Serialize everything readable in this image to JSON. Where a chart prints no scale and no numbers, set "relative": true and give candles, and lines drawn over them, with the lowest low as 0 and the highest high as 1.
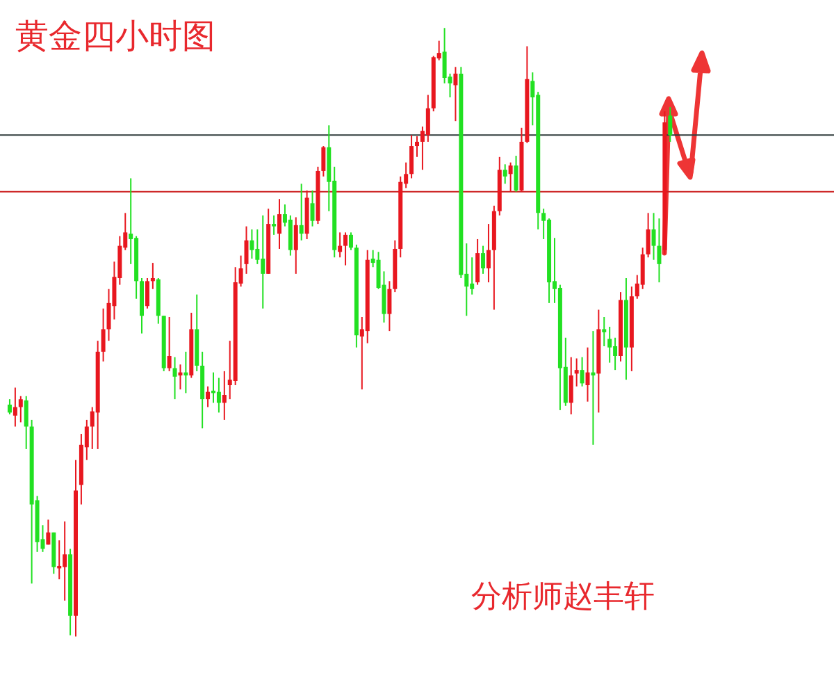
{
  "chart_data": {
    "type": "candlestick",
    "title": "黄金四小时图",
    "relative": true,
    "categories": [
      null,
      null,
      null,
      null,
      null,
      null,
      null,
      null,
      null,
      null,
      null,
      null,
      null,
      null,
      null,
      null,
      null,
      null,
      null,
      null,
      null,
      null,
      null,
      null,
      null,
      null,
      null,
      null,
      null,
      null,
      null,
      null,
      null,
      null,
      null,
      null,
      null,
      null,
      null,
      null,
      null,
      null,
      null,
      null,
      null,
      null,
      null,
      null,
      null,
      null,
      null,
      null,
      null,
      null,
      null,
      null,
      null,
      null,
      null,
      null,
      null,
      null,
      null,
      null,
      null,
      null,
      null,
      null,
      null,
      null,
      null,
      null,
      null,
      null,
      null,
      null,
      null,
      null,
      null,
      null,
      null,
      null,
      null,
      null,
      null,
      null,
      null,
      null,
      null,
      null,
      null,
      null,
      null,
      null,
      null,
      null,
      null,
      null,
      null,
      null,
      null,
      null,
      null,
      null,
      null,
      null,
      null,
      null,
      null,
      null,
      null,
      null,
      null,
      null,
      null,
      null,
      null,
      null,
      null,
      null,
      null
    ],
    "ohlc": [
      [
        0.381,
        0.39,
        0.365,
        0.368
      ],
      [
        0.363,
        0.409,
        0.345,
        0.377
      ],
      [
        0.377,
        0.395,
        0.352,
        0.39
      ],
      [
        0.388,
        0.395,
        0.308,
        0.345
      ],
      [
        0.345,
        0.356,
        0.087,
        0.217
      ],
      [
        0.224,
        0.231,
        0.139,
        0.155
      ],
      [
        0.16,
        0.183,
        0.139,
        0.144
      ],
      [
        0.151,
        0.192,
        0.151,
        0.171
      ],
      [
        0.171,
        0.171,
        0.103,
        0.114
      ],
      [
        0.112,
        0.158,
        0.094,
        0.116
      ],
      [
        0.114,
        0.189,
        0.059,
        0.135
      ],
      [
        0.135,
        0.144,
        0.002,
        0.034
      ],
      [
        0.034,
        0.29,
        0,
        0.24
      ],
      [
        0.249,
        0.333,
        0.217,
        0.315
      ],
      [
        0.311,
        0.356,
        0.29,
        0.345
      ],
      [
        0.345,
        0.377,
        0.308,
        0.37
      ],
      [
        0.368,
        0.486,
        0.308,
        0.468
      ],
      [
        0.468,
        0.539,
        0.452,
        0.505
      ],
      [
        0.505,
        0.571,
        0.486,
        0.548
      ],
      [
        0.543,
        0.616,
        0.521,
        0.591
      ],
      [
        0.589,
        0.658,
        0.578,
        0.642
      ],
      [
        0.639,
        0.696,
        0.635,
        0.664
      ],
      [
        0.662,
        0.753,
        0.612,
        0.653
      ],
      [
        0.655,
        0.658,
        0.555,
        0.584
      ],
      [
        0.584,
        0.589,
        0.498,
        0.527
      ],
      [
        0.543,
        0.589,
        0.539,
        0.584
      ],
      [
        0.584,
        0.614,
        0.571,
        0.589
      ],
      [
        0.587,
        0.589,
        0.514,
        0.527
      ],
      [
        0.527,
        0.527,
        0.436,
        0.441
      ],
      [
        0.441,
        0.525,
        0.436,
        0.461
      ],
      [
        0.441,
        0.459,
        0.39,
        0.427
      ],
      [
        0.429,
        0.447,
        0.406,
        0.434
      ],
      [
        0.434,
        0.468,
        0.4,
        0.429
      ],
      [
        0.429,
        0.532,
        0.425,
        0.505
      ],
      [
        0.505,
        0.562,
        0.436,
        0.445
      ],
      [
        0.445,
        0.468,
        0.342,
        0.39
      ],
      [
        0.39,
        0.411,
        0.377,
        0.402
      ],
      [
        0.404,
        0.434,
        0.384,
        0.4
      ],
      [
        0.402,
        0.425,
        0.368,
        0.384
      ],
      [
        0.384,
        0.436,
        0.356,
        0.397
      ],
      [
        0.413,
        0.486,
        0.39,
        0.422
      ],
      [
        0.42,
        0.607,
        0.413,
        0.582
      ],
      [
        0.58,
        0.626,
        0.575,
        0.605
      ],
      [
        0.612,
        0.674,
        0.596,
        0.651
      ],
      [
        0.651,
        0.669,
        0.621,
        0.635
      ],
      [
        0.637,
        0.669,
        0.612,
        0.619
      ],
      [
        0.621,
        0.692,
        0.539,
        0.596
      ],
      [
        0.596,
        0.703,
        0.596,
        0.678
      ],
      [
        0.678,
        0.692,
        0.66,
        0.674
      ],
      [
        0.662,
        0.719,
        0.637,
        0.694
      ],
      [
        0.694,
        0.71,
        0.674,
        0.68
      ],
      [
        0.685,
        0.692,
        0.626,
        0.635
      ],
      [
        0.635,
        0.689,
        0.596,
        0.676
      ],
      [
        0.676,
        0.744,
        0.651,
        0.662
      ],
      [
        0.662,
        0.733,
        0.653,
        0.721
      ],
      [
        0.712,
        0.733,
        0.674,
        0.683
      ],
      [
        0.683,
        0.772,
        0.678,
        0.765
      ],
      [
        0.765,
        0.806,
        0.756,
        0.804
      ],
      [
        0.804,
        0.84,
        0.699,
        0.747
      ],
      [
        0.749,
        0.772,
        0.623,
        0.635
      ],
      [
        0.632,
        0.664,
        0.623,
        0.642
      ],
      [
        0.642,
        0.664,
        0.61,
        0.66
      ],
      [
        0.66,
        0.664,
        0.635,
        0.639
      ],
      [
        0.639,
        0.644,
        0.475,
        0.495
      ],
      [
        0.493,
        0.525,
        0.406,
        0.505
      ],
      [
        0.502,
        0.635,
        0.482,
        0.619
      ],
      [
        0.621,
        0.635,
        0.607,
        0.614
      ],
      [
        0.619,
        0.632,
        0.571,
        0.573
      ],
      [
        0.578,
        0.6,
        0.516,
        0.53
      ],
      [
        0.53,
        0.584,
        0.502,
        0.571
      ],
      [
        0.571,
        0.651,
        0.566,
        0.637
      ],
      [
        0.637,
        0.756,
        0.623,
        0.747
      ],
      [
        0.744,
        0.779,
        0.737,
        0.76
      ],
      [
        0.76,
        0.824,
        0.753,
        0.806
      ],
      [
        0.806,
        0.822,
        0.788,
        0.813
      ],
      [
        0.813,
        0.838,
        0.767,
        0.831
      ],
      [
        0.824,
        0.89,
        0.813,
        0.868
      ],
      [
        0.868,
        0.954,
        0.863,
        0.952
      ],
      [
        0.95,
        0.979,
        0.947,
        0.959
      ],
      [
        0.961,
        1,
        0.909,
        0.918
      ],
      [
        0.92,
        0.925,
        0.886,
        0.909
      ],
      [
        0.906,
        0.936,
        0.847,
        0.925
      ],
      [
        0.925,
        0.936,
        0.589,
        0.594
      ],
      [
        0.596,
        0.646,
        0.527,
        0.575
      ],
      [
        0.58,
        0.623,
        0.562,
        0.571
      ],
      [
        0.582,
        0.653,
        0.578,
        0.63
      ],
      [
        0.63,
        0.642,
        0.596,
        0.605
      ],
      [
        0.605,
        0.678,
        0.582,
        0.635
      ],
      [
        0.635,
        0.708,
        0.537,
        0.699
      ],
      [
        0.699,
        0.788,
        0.692,
        0.767
      ],
      [
        0.767,
        0.776,
        0.744,
        0.756
      ],
      [
        0.76,
        0.779,
        0.731,
        0.774
      ],
      [
        0.774,
        0.79,
        0.731,
        0.733
      ],
      [
        0.733,
        0.836,
        0.731,
        0.813
      ],
      [
        0.813,
        0.97,
        0.811,
        0.916
      ],
      [
        0.913,
        0.927,
        0.84,
        0.886
      ],
      [
        0.89,
        0.895,
        0.669,
        0.696
      ],
      [
        0.696,
        0.703,
        0.653,
        0.683
      ],
      [
        0.685,
        0.687,
        0.548,
        0.582
      ],
      [
        0.584,
        0.655,
        0.548,
        0.571
      ],
      [
        0.573,
        0.578,
        0.372,
        0.441
      ],
      [
        0.443,
        0.491,
        0.379,
        0.384
      ],
      [
        0.384,
        0.459,
        0.365,
        0.429
      ],
      [
        0.432,
        0.457,
        0.411,
        0.438
      ],
      [
        0.438,
        0.459,
        0.411,
        0.416
      ],
      [
        0.413,
        0.475,
        0.386,
        0.434
      ],
      [
        0.434,
        0.502,
        0.315,
        0.429
      ],
      [
        0.432,
        0.537,
        0.368,
        0.505
      ],
      [
        0.505,
        0.525,
        0.477,
        0.5
      ],
      [
        0.489,
        0.509,
        0.45,
        0.475
      ],
      [
        0.477,
        0.491,
        0.438,
        0.461
      ],
      [
        0.461,
        0.566,
        0.452,
        0.553
      ],
      [
        0.553,
        0.589,
        0.422,
        0.475
      ],
      [
        0.475,
        0.575,
        0.436,
        0.559
      ],
      [
        0.559,
        0.594,
        0.555,
        0.58
      ],
      [
        0.578,
        0.639,
        0.571,
        0.628
      ],
      [
        0.628,
        0.696,
        0.623,
        0.669
      ],
      [
        0.669,
        0.696,
        0.619,
        0.642
      ],
      [
        0.642,
        0.687,
        0.582,
        0.612
      ],
      [
        0.635,
        0.863,
        0.628,
        0.845
      ],
      [
        0.856,
        0.87,
        0.813,
        0.824
      ]
    ],
    "colors": [
      "#22e022",
      "#e8171f",
      "#e8171f",
      "#22e022",
      "#22e022",
      "#22e022",
      "#22e022",
      "#e8171f",
      "#22e022",
      "#e8171f",
      "#e8171f",
      "#22e022",
      "#e8171f",
      "#e8171f",
      "#e8171f",
      "#e8171f",
      "#e8171f",
      "#e8171f",
      "#e8171f",
      "#e8171f",
      "#e8171f",
      "#e8171f",
      "#22e022",
      "#22e022",
      "#22e022",
      "#e8171f",
      "#e8171f",
      "#22e022",
      "#22e022",
      "#e8171f",
      "#22e022",
      "#e8171f",
      "#22e022",
      "#e8171f",
      "#22e022",
      "#22e022",
      "#e8171f",
      "#22e022",
      "#22e022",
      "#e8171f",
      "#e8171f",
      "#e8171f",
      "#e8171f",
      "#e8171f",
      "#22e022",
      "#22e022",
      "#22e022",
      "#e8171f",
      "#22e022",
      "#e8171f",
      "#22e022",
      "#22e022",
      "#e8171f",
      "#22e022",
      "#e8171f",
      "#22e022",
      "#e8171f",
      "#e8171f",
      "#22e022",
      "#22e022",
      "#e8171f",
      "#e8171f",
      "#22e022",
      "#22e022",
      "#e8171f",
      "#e8171f",
      "#22e022",
      "#22e022",
      "#22e022",
      "#e8171f",
      "#e8171f",
      "#e8171f",
      "#e8171f",
      "#e8171f",
      "#e8171f",
      "#e8171f",
      "#e8171f",
      "#e8171f",
      "#e8171f",
      "#22e022",
      "#22e022",
      "#e8171f",
      "#22e022",
      "#22e022",
      "#22e022",
      "#e8171f",
      "#22e022",
      "#e8171f",
      "#e8171f",
      "#e8171f",
      "#22e022",
      "#e8171f",
      "#22e022",
      "#e8171f",
      "#e8171f",
      "#22e022",
      "#22e022",
      "#22e022",
      "#22e022",
      "#22e022",
      "#22e022",
      "#22e022",
      "#e8171f",
      "#e8171f",
      "#22e022",
      "#e8171f",
      "#22e022",
      "#e8171f",
      "#22e022",
      "#22e022",
      "#22e022",
      "#e8171f",
      "#22e022",
      "#e8171f",
      "#e8171f",
      "#e8171f",
      "#e8171f",
      "#22e022",
      "#22e022",
      "#e8171f",
      "#22e022"
    ],
    "ref_lines": [
      {
        "axis": "y",
        "value": 0.824,
        "color": "#2f3b3b"
      },
      {
        "axis": "y",
        "value": 0.731,
        "color": "#cc1f1f"
      }
    ],
    "annotations": [
      "分析师赵丰轩"
    ]
  }
}
